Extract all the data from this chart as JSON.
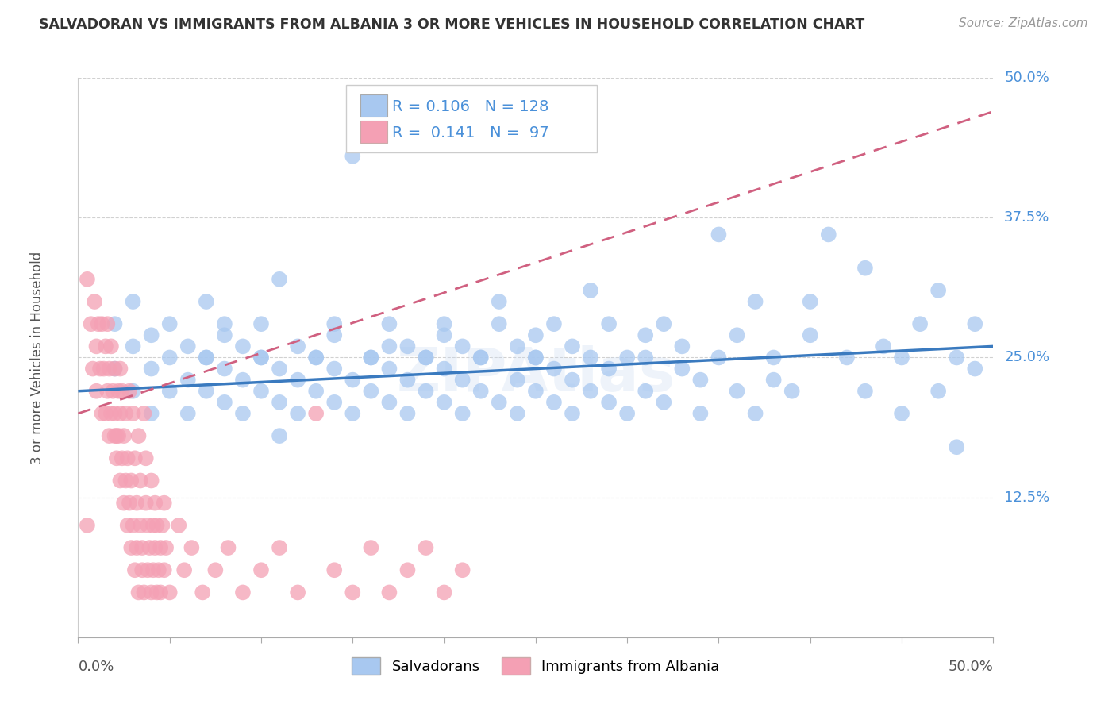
{
  "title": "SALVADORAN VS IMMIGRANTS FROM ALBANIA 3 OR MORE VEHICLES IN HOUSEHOLD CORRELATION CHART",
  "source_text": "Source: ZipAtlas.com",
  "ylabel": "3 or more Vehicles in Household",
  "xlim": [
    0.0,
    0.5
  ],
  "ylim": [
    0.0,
    0.5
  ],
  "R_blue": 0.106,
  "N_blue": 128,
  "R_pink": 0.141,
  "N_pink": 97,
  "blue_color": "#a8c8f0",
  "pink_color": "#f4a0b4",
  "blue_line_color": "#3a7abf",
  "pink_line_color": "#d06080",
  "watermark": "ZIPAtlas",
  "legend_entries": [
    "Salvadorans",
    "Immigrants from Albania"
  ],
  "background_color": "#ffffff",
  "grid_color": "#cccccc",
  "blue_trend": [
    0.22,
    0.26
  ],
  "pink_trend": [
    0.2,
    0.47
  ],
  "blue_scatter": [
    [
      0.02,
      0.24
    ],
    [
      0.02,
      0.28
    ],
    [
      0.03,
      0.22
    ],
    [
      0.03,
      0.26
    ],
    [
      0.03,
      0.3
    ],
    [
      0.04,
      0.2
    ],
    [
      0.04,
      0.24
    ],
    [
      0.04,
      0.27
    ],
    [
      0.05,
      0.25
    ],
    [
      0.05,
      0.28
    ],
    [
      0.05,
      0.22
    ],
    [
      0.06,
      0.2
    ],
    [
      0.06,
      0.23
    ],
    [
      0.06,
      0.26
    ],
    [
      0.07,
      0.25
    ],
    [
      0.07,
      0.22
    ],
    [
      0.07,
      0.25
    ],
    [
      0.07,
      0.3
    ],
    [
      0.08,
      0.28
    ],
    [
      0.08,
      0.21
    ],
    [
      0.08,
      0.24
    ],
    [
      0.08,
      0.27
    ],
    [
      0.09,
      0.2
    ],
    [
      0.09,
      0.23
    ],
    [
      0.09,
      0.26
    ],
    [
      0.1,
      0.25
    ],
    [
      0.1,
      0.22
    ],
    [
      0.1,
      0.25
    ],
    [
      0.1,
      0.28
    ],
    [
      0.11,
      0.18
    ],
    [
      0.11,
      0.21
    ],
    [
      0.11,
      0.24
    ],
    [
      0.11,
      0.32
    ],
    [
      0.12,
      0.2
    ],
    [
      0.12,
      0.23
    ],
    [
      0.12,
      0.26
    ],
    [
      0.13,
      0.25
    ],
    [
      0.13,
      0.22
    ],
    [
      0.13,
      0.25
    ],
    [
      0.14,
      0.28
    ],
    [
      0.14,
      0.21
    ],
    [
      0.14,
      0.24
    ],
    [
      0.14,
      0.27
    ],
    [
      0.15,
      0.2
    ],
    [
      0.15,
      0.23
    ],
    [
      0.15,
      0.43
    ],
    [
      0.16,
      0.25
    ],
    [
      0.16,
      0.22
    ],
    [
      0.16,
      0.25
    ],
    [
      0.17,
      0.28
    ],
    [
      0.17,
      0.21
    ],
    [
      0.17,
      0.24
    ],
    [
      0.17,
      0.26
    ],
    [
      0.18,
      0.2
    ],
    [
      0.18,
      0.23
    ],
    [
      0.18,
      0.26
    ],
    [
      0.19,
      0.25
    ],
    [
      0.19,
      0.22
    ],
    [
      0.19,
      0.25
    ],
    [
      0.2,
      0.28
    ],
    [
      0.2,
      0.21
    ],
    [
      0.2,
      0.24
    ],
    [
      0.2,
      0.27
    ],
    [
      0.21,
      0.2
    ],
    [
      0.21,
      0.23
    ],
    [
      0.21,
      0.26
    ],
    [
      0.21,
      0.45
    ],
    [
      0.22,
      0.25
    ],
    [
      0.22,
      0.22
    ],
    [
      0.22,
      0.25
    ],
    [
      0.23,
      0.28
    ],
    [
      0.23,
      0.21
    ],
    [
      0.23,
      0.3
    ],
    [
      0.24,
      0.2
    ],
    [
      0.24,
      0.23
    ],
    [
      0.24,
      0.26
    ],
    [
      0.25,
      0.25
    ],
    [
      0.25,
      0.22
    ],
    [
      0.25,
      0.25
    ],
    [
      0.25,
      0.27
    ],
    [
      0.26,
      0.28
    ],
    [
      0.26,
      0.21
    ],
    [
      0.26,
      0.24
    ],
    [
      0.27,
      0.2
    ],
    [
      0.27,
      0.23
    ],
    [
      0.27,
      0.26
    ],
    [
      0.28,
      0.25
    ],
    [
      0.28,
      0.22
    ],
    [
      0.28,
      0.31
    ],
    [
      0.29,
      0.28
    ],
    [
      0.29,
      0.21
    ],
    [
      0.29,
      0.24
    ],
    [
      0.3,
      0.2
    ],
    [
      0.3,
      0.25
    ],
    [
      0.31,
      0.25
    ],
    [
      0.31,
      0.22
    ],
    [
      0.31,
      0.27
    ],
    [
      0.32,
      0.28
    ],
    [
      0.32,
      0.21
    ],
    [
      0.33,
      0.24
    ],
    [
      0.33,
      0.26
    ],
    [
      0.34,
      0.2
    ],
    [
      0.34,
      0.23
    ],
    [
      0.35,
      0.25
    ],
    [
      0.35,
      0.36
    ],
    [
      0.36,
      0.22
    ],
    [
      0.36,
      0.27
    ],
    [
      0.37,
      0.2
    ],
    [
      0.37,
      0.3
    ],
    [
      0.38,
      0.23
    ],
    [
      0.38,
      0.25
    ],
    [
      0.39,
      0.22
    ],
    [
      0.4,
      0.27
    ],
    [
      0.4,
      0.3
    ],
    [
      0.41,
      0.36
    ],
    [
      0.42,
      0.25
    ],
    [
      0.43,
      0.22
    ],
    [
      0.43,
      0.33
    ],
    [
      0.44,
      0.26
    ],
    [
      0.45,
      0.2
    ],
    [
      0.45,
      0.25
    ],
    [
      0.46,
      0.28
    ],
    [
      0.47,
      0.22
    ],
    [
      0.47,
      0.31
    ],
    [
      0.48,
      0.17
    ],
    [
      0.48,
      0.25
    ],
    [
      0.49,
      0.24
    ],
    [
      0.49,
      0.28
    ]
  ],
  "pink_scatter": [
    [
      0.005,
      0.32
    ],
    [
      0.007,
      0.28
    ],
    [
      0.008,
      0.24
    ],
    [
      0.009,
      0.3
    ],
    [
      0.01,
      0.26
    ],
    [
      0.01,
      0.22
    ],
    [
      0.011,
      0.28
    ],
    [
      0.012,
      0.24
    ],
    [
      0.013,
      0.2
    ],
    [
      0.013,
      0.28
    ],
    [
      0.014,
      0.24
    ],
    [
      0.015,
      0.2
    ],
    [
      0.015,
      0.26
    ],
    [
      0.016,
      0.22
    ],
    [
      0.016,
      0.28
    ],
    [
      0.017,
      0.18
    ],
    [
      0.017,
      0.24
    ],
    [
      0.018,
      0.2
    ],
    [
      0.018,
      0.26
    ],
    [
      0.019,
      0.22
    ],
    [
      0.02,
      0.18
    ],
    [
      0.02,
      0.24
    ],
    [
      0.02,
      0.2
    ],
    [
      0.021,
      0.18
    ],
    [
      0.021,
      0.16
    ],
    [
      0.022,
      0.22
    ],
    [
      0.022,
      0.18
    ],
    [
      0.023,
      0.24
    ],
    [
      0.023,
      0.14
    ],
    [
      0.023,
      0.2
    ],
    [
      0.024,
      0.16
    ],
    [
      0.024,
      0.22
    ],
    [
      0.025,
      0.12
    ],
    [
      0.025,
      0.18
    ],
    [
      0.026,
      0.14
    ],
    [
      0.026,
      0.2
    ],
    [
      0.027,
      0.1
    ],
    [
      0.027,
      0.16
    ],
    [
      0.028,
      0.12
    ],
    [
      0.028,
      0.22
    ],
    [
      0.029,
      0.08
    ],
    [
      0.029,
      0.14
    ],
    [
      0.03,
      0.2
    ],
    [
      0.03,
      0.1
    ],
    [
      0.031,
      0.16
    ],
    [
      0.031,
      0.06
    ],
    [
      0.032,
      0.12
    ],
    [
      0.032,
      0.08
    ],
    [
      0.033,
      0.18
    ],
    [
      0.033,
      0.04
    ],
    [
      0.034,
      0.1
    ],
    [
      0.034,
      0.14
    ],
    [
      0.035,
      0.06
    ],
    [
      0.035,
      0.08
    ],
    [
      0.036,
      0.2
    ],
    [
      0.036,
      0.04
    ],
    [
      0.037,
      0.12
    ],
    [
      0.037,
      0.16
    ],
    [
      0.038,
      0.06
    ],
    [
      0.038,
      0.1
    ],
    [
      0.039,
      0.08
    ],
    [
      0.04,
      0.14
    ],
    [
      0.04,
      0.04
    ],
    [
      0.041,
      0.1
    ],
    [
      0.041,
      0.06
    ],
    [
      0.042,
      0.12
    ],
    [
      0.042,
      0.08
    ],
    [
      0.043,
      0.04
    ],
    [
      0.043,
      0.1
    ],
    [
      0.044,
      0.06
    ],
    [
      0.045,
      0.08
    ],
    [
      0.045,
      0.04
    ],
    [
      0.046,
      0.1
    ],
    [
      0.047,
      0.06
    ],
    [
      0.047,
      0.12
    ],
    [
      0.048,
      0.08
    ],
    [
      0.05,
      0.04
    ],
    [
      0.055,
      0.1
    ],
    [
      0.058,
      0.06
    ],
    [
      0.062,
      0.08
    ],
    [
      0.068,
      0.04
    ],
    [
      0.075,
      0.06
    ],
    [
      0.082,
      0.08
    ],
    [
      0.09,
      0.04
    ],
    [
      0.1,
      0.06
    ],
    [
      0.11,
      0.08
    ],
    [
      0.12,
      0.04
    ],
    [
      0.13,
      0.2
    ],
    [
      0.14,
      0.06
    ],
    [
      0.15,
      0.04
    ],
    [
      0.16,
      0.08
    ],
    [
      0.17,
      0.04
    ],
    [
      0.18,
      0.06
    ],
    [
      0.19,
      0.08
    ],
    [
      0.2,
      0.04
    ],
    [
      0.21,
      0.06
    ],
    [
      0.005,
      0.1
    ]
  ]
}
